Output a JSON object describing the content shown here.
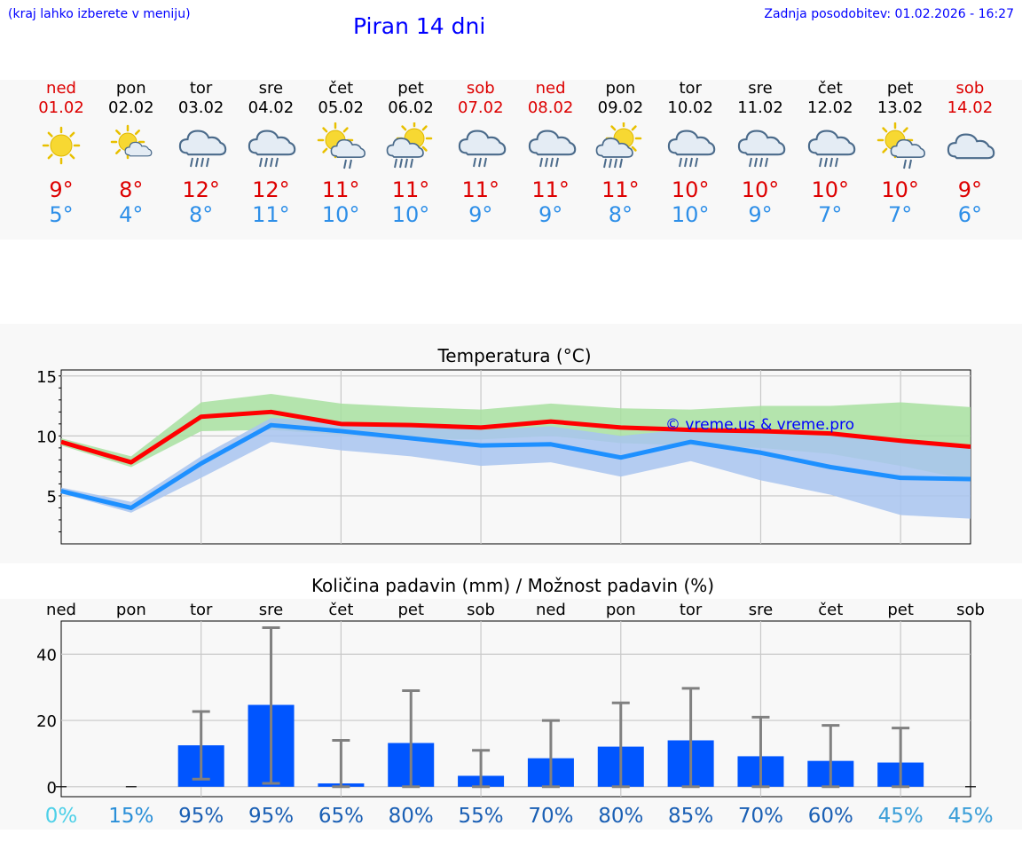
{
  "header": {
    "note": "(kraj lahko izberete v meniju)",
    "title": "Piran 14 dni",
    "update": "Zadnja posodobitev: 01.02.2026 - 16:27"
  },
  "days": [
    {
      "name": "ned",
      "date": "01.02",
      "icon": "sun-icon",
      "max": "9°",
      "min": "5°",
      "weekend": true
    },
    {
      "name": "pon",
      "date": "02.02",
      "icon": "sun-cloud-icon",
      "max": "8°",
      "min": "4°",
      "weekend": false
    },
    {
      "name": "tor",
      "date": "03.02",
      "icon": "rain-cloud-icon",
      "max": "12°",
      "min": "8°",
      "weekend": false
    },
    {
      "name": "sre",
      "date": "04.02",
      "icon": "rain-cloud-icon",
      "max": "12°",
      "min": "11°",
      "weekend": false
    },
    {
      "name": "čet",
      "date": "05.02",
      "icon": "sun-rain-icon",
      "max": "11°",
      "min": "10°",
      "weekend": false
    },
    {
      "name": "pet",
      "date": "06.02",
      "icon": "sun-heavy-rain-icon",
      "max": "11°",
      "min": "10°",
      "weekend": false
    },
    {
      "name": "sob",
      "date": "07.02",
      "icon": "light-rain-cloud-icon",
      "max": "11°",
      "min": "9°",
      "weekend": true
    },
    {
      "name": "ned",
      "date": "08.02",
      "icon": "rain-cloud-icon",
      "max": "11°",
      "min": "9°",
      "weekend": true
    },
    {
      "name": "pon",
      "date": "09.02",
      "icon": "sun-heavy-rain-icon",
      "max": "11°",
      "min": "8°",
      "weekend": false
    },
    {
      "name": "tor",
      "date": "10.02",
      "icon": "rain-cloud-icon",
      "max": "10°",
      "min": "10°",
      "weekend": false
    },
    {
      "name": "sre",
      "date": "11.02",
      "icon": "rain-cloud-icon",
      "max": "10°",
      "min": "9°",
      "weekend": false
    },
    {
      "name": "čet",
      "date": "12.02",
      "icon": "rain-cloud-icon",
      "max": "10°",
      "min": "7°",
      "weekend": false
    },
    {
      "name": "pet",
      "date": "13.02",
      "icon": "sun-rain-icon",
      "max": "10°",
      "min": "7°",
      "weekend": false
    },
    {
      "name": "sob",
      "date": "14.02",
      "icon": "cloud-icon",
      "max": "9°",
      "min": "6°",
      "weekend": true
    }
  ],
  "chart_data": [
    {
      "type": "line",
      "title": "Temperatura (°C)",
      "watermark": "© vreme.us & vreme.pro",
      "xlabel": "",
      "ylabel": "",
      "ylim": [
        1,
        15.5
      ],
      "yticks": [
        5,
        10,
        15
      ],
      "x": [
        0,
        1,
        2,
        3,
        4,
        5,
        6,
        7,
        8,
        9,
        10,
        11,
        12,
        13
      ],
      "series": [
        {
          "name": "max",
          "color": "#ff0000",
          "values": [
            9.5,
            7.8,
            11.6,
            12.0,
            11.0,
            10.9,
            10.7,
            11.2,
            10.7,
            10.5,
            10.4,
            10.2,
            9.6,
            9.1
          ],
          "band_low": [
            9.2,
            7.4,
            10.4,
            10.5,
            10.1,
            9.8,
            9.7,
            10.0,
            9.4,
            9.2,
            9.0,
            8.5,
            7.5,
            6.3
          ],
          "band_high": [
            9.8,
            8.3,
            12.8,
            13.5,
            12.7,
            12.4,
            12.2,
            12.7,
            12.3,
            12.2,
            12.5,
            12.5,
            12.8,
            12.4
          ],
          "band_color": "#a8e0a0"
        },
        {
          "name": "min",
          "color": "#1e90ff",
          "values": [
            5.4,
            4.0,
            7.7,
            10.9,
            10.4,
            9.8,
            9.2,
            9.3,
            8.2,
            9.5,
            8.6,
            7.4,
            6.5,
            6.4
          ],
          "band_low": [
            5.2,
            3.6,
            6.5,
            9.5,
            8.8,
            8.3,
            7.5,
            7.8,
            6.6,
            7.9,
            6.3,
            5.1,
            3.4,
            3.1
          ],
          "band_high": [
            5.7,
            4.5,
            8.3,
            11.5,
            11.2,
            10.8,
            10.5,
            10.8,
            10.0,
            10.6,
            10.2,
            10.0,
            9.5,
            9.0
          ],
          "band_color": "#a8c4f0"
        }
      ]
    },
    {
      "type": "bar",
      "title": "Količina padavin (mm) / Možnost padavin (%)",
      "xlabel": "",
      "ylabel": "",
      "categories": [
        "ned",
        "pon",
        "tor",
        "sre",
        "čet",
        "pet",
        "sob",
        "ned",
        "pon",
        "tor",
        "sre",
        "čet",
        "pet",
        "sob"
      ],
      "ylim": [
        -3,
        50
      ],
      "yticks": [
        0,
        20,
        40
      ],
      "values": [
        0,
        0,
        12.5,
        24.7,
        1.0,
        13.2,
        3.3,
        8.6,
        12.1,
        14.0,
        9.2,
        7.8,
        7.3,
        0
      ],
      "err_low": [
        0,
        0,
        2.3,
        1.0,
        0,
        0,
        0,
        0,
        0,
        0,
        0,
        0,
        0,
        0
      ],
      "err_high": [
        0,
        0,
        22.7,
        48.0,
        14.0,
        29.0,
        11.0,
        20.0,
        25.3,
        29.7,
        21.0,
        18.5,
        17.7,
        0
      ],
      "probabilities": [
        "0%",
        "15%",
        "95%",
        "95%",
        "65%",
        "80%",
        "55%",
        "70%",
        "80%",
        "85%",
        "70%",
        "60%",
        "45%",
        "45%"
      ],
      "prob_colors": [
        "#4dd0e8",
        "#2a8fd8",
        "#1a5fb4",
        "#1a5fb4",
        "#1a5fb4",
        "#1a5fb4",
        "#1a5fb4",
        "#1a5fb4",
        "#1a5fb4",
        "#1a5fb4",
        "#1a5fb4",
        "#1a5fb4",
        "#3a9ed8",
        "#3a9ed8"
      ],
      "bar_color": "#0055ff",
      "error_color": "#808080"
    }
  ]
}
